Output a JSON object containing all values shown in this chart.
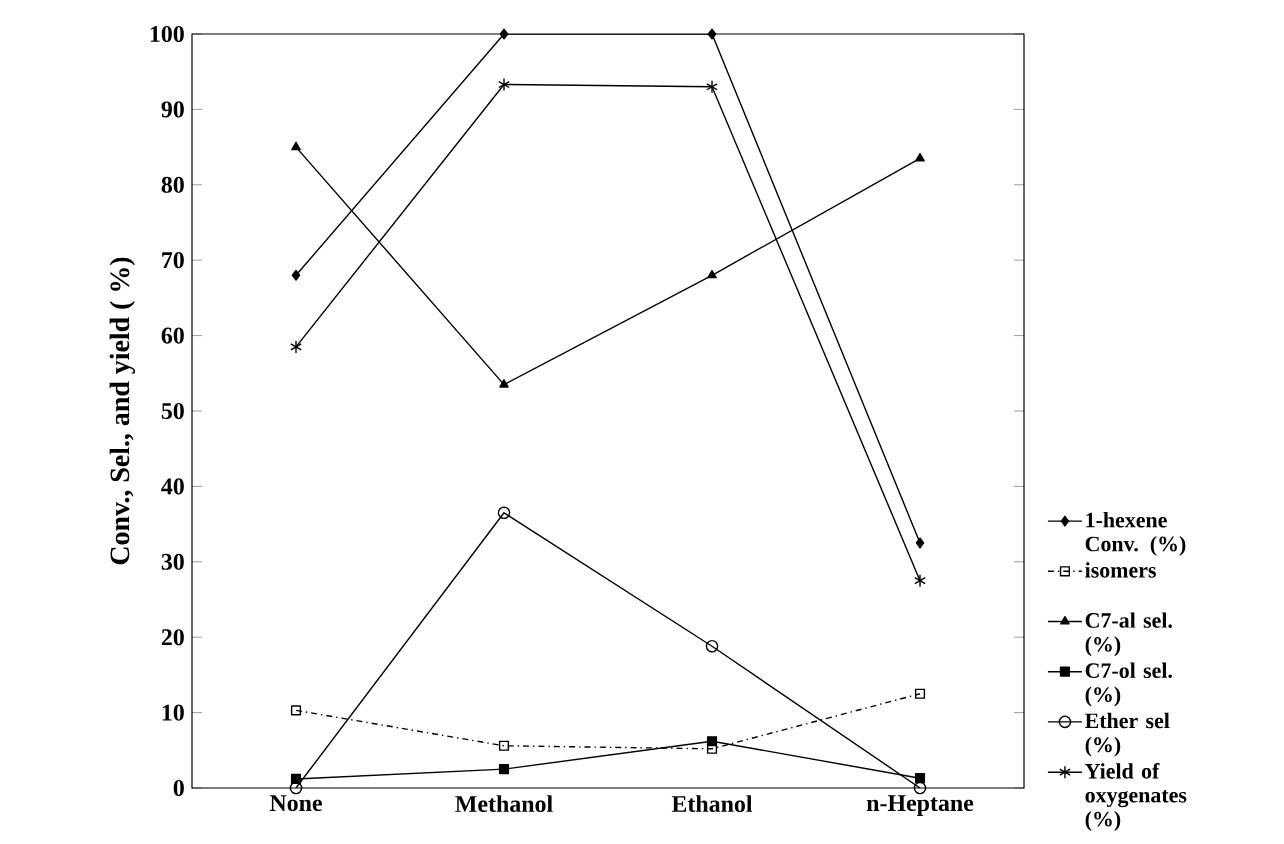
{
  "chart_data": {
    "type": "line",
    "ylabel": "Conv., Sel., and yield ( %)",
    "categories": [
      "None",
      "Methanol",
      "Ethanol",
      "n-Heptane"
    ],
    "ylim": [
      0,
      100
    ],
    "yticks": [
      0,
      10,
      20,
      30,
      40,
      50,
      60,
      70,
      80,
      90,
      100
    ],
    "legend": "right",
    "grid": false,
    "series": [
      {
        "name": "1-hexene Conv. (%)",
        "color": "#000000",
        "marker": "diamond",
        "line_style": "solid",
        "values": [
          68,
          100,
          100,
          32.5
        ]
      },
      {
        "name": "isomers",
        "color": "#000000",
        "marker": "square_open",
        "line_style": "dashdot",
        "values": [
          10.3,
          5.6,
          5.2,
          12.5
        ]
      },
      {
        "name": "C7-al sel. (%)",
        "color": "#000000",
        "marker": "triangle",
        "line_style": "solid",
        "values": [
          85,
          53.5,
          68,
          83.5
        ]
      },
      {
        "name": "C7-ol sel. (%)",
        "color": "#000000",
        "marker": "square",
        "line_style": "solid",
        "values": [
          1.2,
          2.5,
          6.2,
          1.3
        ]
      },
      {
        "name": "Ether sel (%)",
        "color": "#000000",
        "marker": "circle_open",
        "line_style": "solid",
        "values": [
          0,
          36.5,
          18.8,
          0
        ]
      },
      {
        "name": "Yield of oxygenates (%)",
        "color": "#000000",
        "marker": "cross",
        "line_style": "solid",
        "values": [
          58.5,
          93.3,
          93,
          27.5
        ]
      }
    ]
  }
}
